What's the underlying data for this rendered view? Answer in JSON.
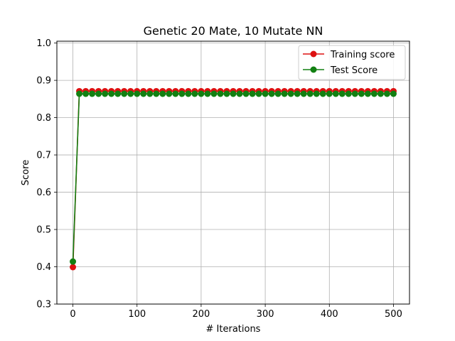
{
  "chart_data": {
    "type": "line",
    "title": "Genetic 20 Mate, 10 Mutate NN",
    "xlabel": "# Iterations",
    "ylabel": "Score",
    "xlim": [
      -25,
      525
    ],
    "ylim": [
      0.3,
      1.005
    ],
    "xticks": [
      0,
      100,
      200,
      300,
      400,
      500
    ],
    "yticks": [
      0.3,
      0.4,
      0.5,
      0.6,
      0.7,
      0.8,
      0.9,
      1.0
    ],
    "xtick_labels": [
      "0",
      "100",
      "200",
      "300",
      "400",
      "500"
    ],
    "ytick_labels": [
      "0.3",
      "0.4",
      "0.5",
      "0.6",
      "0.7",
      "0.8",
      "0.9",
      "1.0"
    ],
    "grid": true,
    "legend_position": "top-right",
    "x": [
      0,
      10,
      20,
      30,
      40,
      50,
      60,
      70,
      80,
      90,
      100,
      110,
      120,
      130,
      140,
      150,
      160,
      170,
      180,
      190,
      200,
      210,
      220,
      230,
      240,
      250,
      260,
      270,
      280,
      290,
      300,
      310,
      320,
      330,
      340,
      350,
      360,
      370,
      380,
      390,
      400,
      410,
      420,
      430,
      440,
      450,
      460,
      470,
      480,
      490,
      500
    ],
    "series": [
      {
        "name": "Training score",
        "color": "#dd1111",
        "values": [
          0.399,
          0.871,
          0.871,
          0.871,
          0.871,
          0.871,
          0.871,
          0.871,
          0.871,
          0.871,
          0.871,
          0.871,
          0.871,
          0.871,
          0.871,
          0.871,
          0.871,
          0.871,
          0.871,
          0.871,
          0.871,
          0.871,
          0.871,
          0.871,
          0.871,
          0.871,
          0.871,
          0.871,
          0.871,
          0.871,
          0.871,
          0.871,
          0.871,
          0.871,
          0.871,
          0.871,
          0.871,
          0.871,
          0.871,
          0.871,
          0.871,
          0.871,
          0.871,
          0.871,
          0.871,
          0.871,
          0.871,
          0.871,
          0.871,
          0.871,
          0.871
        ]
      },
      {
        "name": "Test Score",
        "color": "#128012",
        "values": [
          0.414,
          0.864,
          0.864,
          0.864,
          0.864,
          0.864,
          0.864,
          0.864,
          0.864,
          0.864,
          0.864,
          0.864,
          0.864,
          0.864,
          0.864,
          0.864,
          0.864,
          0.864,
          0.864,
          0.864,
          0.864,
          0.864,
          0.864,
          0.864,
          0.864,
          0.864,
          0.864,
          0.864,
          0.864,
          0.864,
          0.864,
          0.864,
          0.864,
          0.864,
          0.864,
          0.864,
          0.864,
          0.864,
          0.864,
          0.864,
          0.864,
          0.864,
          0.864,
          0.864,
          0.864,
          0.864,
          0.864,
          0.864,
          0.864,
          0.864,
          0.864
        ]
      }
    ]
  }
}
